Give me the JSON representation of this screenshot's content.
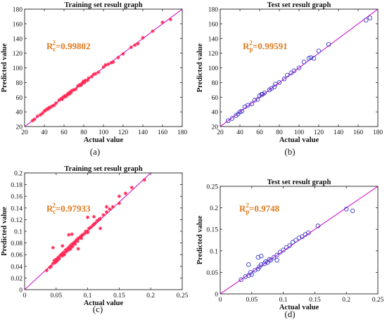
{
  "chart_data": [
    {
      "type": "scatter",
      "panel_label": "(a)",
      "title": "Training set result graph",
      "xlabel": "Actual value",
      "ylabel": "Predicted value",
      "xlim": [
        20,
        180
      ],
      "ylim": [
        20,
        180
      ],
      "xticks": [
        "20",
        "40",
        "60",
        "80",
        "100",
        "120",
        "140",
        "160",
        "180"
      ],
      "yticks": [
        "20",
        "40",
        "60",
        "80",
        "100",
        "120",
        "140",
        "160",
        "180"
      ],
      "r2_label": {
        "main": "R",
        "sub": "c",
        "sup": "2",
        "value": "=0.99802"
      },
      "marker": "star",
      "marker_color": "#ff2a55",
      "line_color": "#cc00cc",
      "fit_line": [
        [
          20,
          20
        ],
        [
          180,
          180
        ]
      ],
      "points": [
        [
          28,
          28
        ],
        [
          30,
          30
        ],
        [
          33,
          34
        ],
        [
          36,
          36
        ],
        [
          38,
          38
        ],
        [
          40,
          41
        ],
        [
          41,
          42
        ],
        [
          42,
          43
        ],
        [
          43,
          44
        ],
        [
          44,
          44
        ],
        [
          45,
          46
        ],
        [
          46,
          46
        ],
        [
          48,
          48
        ],
        [
          50,
          49
        ],
        [
          52,
          52
        ],
        [
          55,
          56
        ],
        [
          57,
          58
        ],
        [
          58,
          57
        ],
        [
          59,
          60
        ],
        [
          60,
          60
        ],
        [
          61,
          62
        ],
        [
          62,
          61
        ],
        [
          63,
          63
        ],
        [
          64,
          65
        ],
        [
          65,
          64
        ],
        [
          66,
          67
        ],
        [
          67,
          66
        ],
        [
          68,
          69
        ],
        [
          70,
          70
        ],
        [
          72,
          71
        ],
        [
          74,
          75
        ],
        [
          75,
          76
        ],
        [
          76,
          77
        ],
        [
          77,
          76
        ],
        [
          78,
          78
        ],
        [
          79,
          80
        ],
        [
          80,
          82
        ],
        [
          81,
          80
        ],
        [
          82,
          83
        ],
        [
          84,
          83
        ],
        [
          85,
          86
        ],
        [
          88,
          88
        ],
        [
          90,
          91
        ],
        [
          92,
          92
        ],
        [
          95,
          94
        ],
        [
          100,
          101
        ],
        [
          102,
          104
        ],
        [
          105,
          105
        ],
        [
          108,
          107
        ],
        [
          110,
          108
        ],
        [
          115,
          114
        ],
        [
          120,
          119
        ],
        [
          128,
          128
        ],
        [
          132,
          131
        ],
        [
          135,
          133
        ],
        [
          140,
          141
        ],
        [
          150,
          150
        ],
        [
          160,
          162
        ],
        [
          168,
          166
        ]
      ]
    },
    {
      "type": "scatter",
      "panel_label": "(b)",
      "title": "Test set result graph",
      "xlabel": "Actual value",
      "ylabel": "Predicted value",
      "xlim": [
        20,
        180
      ],
      "ylim": [
        20,
        180
      ],
      "xticks": [
        "20",
        "40",
        "60",
        "80",
        "100",
        "120",
        "140",
        "160",
        "180"
      ],
      "yticks": [
        "20",
        "40",
        "60",
        "80",
        "100",
        "120",
        "140",
        "160",
        "180"
      ],
      "r2_label": {
        "main": "R",
        "sub": "p",
        "sup": "2",
        "value": "=0.99591"
      },
      "marker": "circle",
      "marker_color": "#3a3ac8",
      "line_color": "#cc00cc",
      "fit_line": [
        [
          20,
          20
        ],
        [
          180,
          180
        ]
      ],
      "points": [
        [
          28,
          28
        ],
        [
          32,
          31
        ],
        [
          36,
          35
        ],
        [
          38,
          37
        ],
        [
          40,
          40
        ],
        [
          42,
          41
        ],
        [
          45,
          47
        ],
        [
          48,
          49
        ],
        [
          52,
          51
        ],
        [
          55,
          56
        ],
        [
          58,
          57
        ],
        [
          60,
          62
        ],
        [
          62,
          64
        ],
        [
          63,
          64
        ],
        [
          65,
          66
        ],
        [
          70,
          70
        ],
        [
          72,
          72
        ],
        [
          75,
          74
        ],
        [
          76,
          78
        ],
        [
          80,
          80
        ],
        [
          85,
          85
        ],
        [
          88,
          90
        ],
        [
          92,
          93
        ],
        [
          95,
          96
        ],
        [
          100,
          100
        ],
        [
          105,
          108
        ],
        [
          110,
          113
        ],
        [
          112,
          114
        ],
        [
          115,
          113
        ],
        [
          120,
          123
        ],
        [
          130,
          132
        ],
        [
          168,
          165
        ],
        [
          172,
          168
        ]
      ]
    },
    {
      "type": "scatter",
      "panel_label": "(c)",
      "title": "Training set result graph",
      "xlabel": "Actual value",
      "ylabel": "Predicted value",
      "xlim": [
        0,
        0.25
      ],
      "ylim": [
        0,
        0.2
      ],
      "xticks": [
        "0",
        "0.05",
        "0.1",
        "0.15",
        "0.2",
        "0.25"
      ],
      "yticks": [
        "0",
        "0.02",
        "0.04",
        "0.06",
        "0.08",
        "0.1",
        "0.12",
        "0.14",
        "0.16",
        "0.18",
        "0.2"
      ],
      "r2_label": {
        "main": "R",
        "sub": "c",
        "sup": "2",
        "value": "=0.97933"
      },
      "marker": "star",
      "marker_color": "#ff2a55",
      "line_color": "#cc00cc",
      "fit_line": [
        [
          0,
          0
        ],
        [
          0.2,
          0.2
        ]
      ],
      "points": [
        [
          0.035,
          0.033
        ],
        [
          0.04,
          0.038
        ],
        [
          0.042,
          0.04
        ],
        [
          0.045,
          0.045
        ],
        [
          0.047,
          0.05
        ],
        [
          0.048,
          0.046
        ],
        [
          0.05,
          0.052
        ],
        [
          0.05,
          0.048
        ],
        [
          0.052,
          0.05
        ],
        [
          0.053,
          0.055
        ],
        [
          0.055,
          0.053
        ],
        [
          0.056,
          0.058
        ],
        [
          0.058,
          0.06
        ],
        [
          0.06,
          0.058
        ],
        [
          0.06,
          0.062
        ],
        [
          0.062,
          0.064
        ],
        [
          0.063,
          0.06
        ],
        [
          0.065,
          0.068
        ],
        [
          0.066,
          0.065
        ],
        [
          0.068,
          0.07
        ],
        [
          0.07,
          0.068
        ],
        [
          0.07,
          0.072
        ],
        [
          0.072,
          0.075
        ],
        [
          0.073,
          0.07
        ],
        [
          0.075,
          0.078
        ],
        [
          0.076,
          0.074
        ],
        [
          0.078,
          0.08
        ],
        [
          0.08,
          0.082
        ],
        [
          0.08,
          0.078
        ],
        [
          0.082,
          0.085
        ],
        [
          0.084,
          0.083
        ],
        [
          0.085,
          0.088
        ],
        [
          0.088,
          0.09
        ],
        [
          0.09,
          0.092
        ],
        [
          0.09,
          0.088
        ],
        [
          0.092,
          0.094
        ],
        [
          0.095,
          0.096
        ],
        [
          0.097,
          0.1
        ],
        [
          0.1,
          0.1
        ],
        [
          0.1,
          0.098
        ],
        [
          0.102,
          0.105
        ],
        [
          0.105,
          0.107
        ],
        [
          0.108,
          0.11
        ],
        [
          0.11,
          0.112
        ],
        [
          0.112,
          0.114
        ],
        [
          0.115,
          0.118
        ],
        [
          0.118,
          0.12
        ],
        [
          0.12,
          0.122
        ],
        [
          0.125,
          0.128
        ],
        [
          0.13,
          0.133
        ],
        [
          0.135,
          0.138
        ],
        [
          0.14,
          0.142
        ],
        [
          0.15,
          0.148
        ],
        [
          0.16,
          0.165
        ],
        [
          0.17,
          0.175
        ],
        [
          0.19,
          0.188
        ],
        [
          0.07,
          0.094
        ],
        [
          0.075,
          0.095
        ],
        [
          0.1,
          0.124
        ],
        [
          0.11,
          0.125
        ],
        [
          0.13,
          0.142
        ],
        [
          0.15,
          0.16
        ],
        [
          0.045,
          0.072
        ],
        [
          0.06,
          0.075
        ],
        [
          0.085,
          0.07
        ],
        [
          0.12,
          0.105
        ]
      ]
    },
    {
      "type": "scatter",
      "panel_label": "(d)",
      "title": "Test set result graph",
      "xlabel": "Actual value",
      "ylabel": "Predicted value",
      "xlim": [
        0,
        0.25
      ],
      "ylim": [
        0,
        0.25
      ],
      "xticks": [
        "0",
        "0.05",
        "0.1",
        "0.15",
        "0.2",
        "0.25"
      ],
      "yticks": [
        "0",
        "0.05",
        "0.1",
        "0.15",
        "0.2",
        "0.25"
      ],
      "r2_label": {
        "main": "R",
        "sub": "p",
        "sup": "2",
        "value": "=0.9748"
      },
      "marker": "circle",
      "marker_color": "#3a3ac8",
      "line_color": "#cc00cc",
      "fit_line": [
        [
          0,
          0
        ],
        [
          0.25,
          0.25
        ]
      ],
      "points": [
        [
          0.033,
          0.033
        ],
        [
          0.04,
          0.04
        ],
        [
          0.045,
          0.043
        ],
        [
          0.048,
          0.05
        ],
        [
          0.05,
          0.045
        ],
        [
          0.055,
          0.055
        ],
        [
          0.06,
          0.058
        ],
        [
          0.062,
          0.063
        ],
        [
          0.065,
          0.068
        ],
        [
          0.07,
          0.07
        ],
        [
          0.072,
          0.075
        ],
        [
          0.075,
          0.073
        ],
        [
          0.078,
          0.08
        ],
        [
          0.08,
          0.078
        ],
        [
          0.085,
          0.085
        ],
        [
          0.09,
          0.09
        ],
        [
          0.095,
          0.097
        ],
        [
          0.1,
          0.102
        ],
        [
          0.105,
          0.108
        ],
        [
          0.11,
          0.112
        ],
        [
          0.115,
          0.12
        ],
        [
          0.12,
          0.125
        ],
        [
          0.125,
          0.13
        ],
        [
          0.13,
          0.133
        ],
        [
          0.135,
          0.138
        ],
        [
          0.14,
          0.142
        ],
        [
          0.155,
          0.158
        ],
        [
          0.2,
          0.197
        ],
        [
          0.21,
          0.193
        ],
        [
          0.045,
          0.068
        ],
        [
          0.06,
          0.085
        ],
        [
          0.065,
          0.088
        ],
        [
          0.09,
          0.078
        ]
      ]
    }
  ]
}
